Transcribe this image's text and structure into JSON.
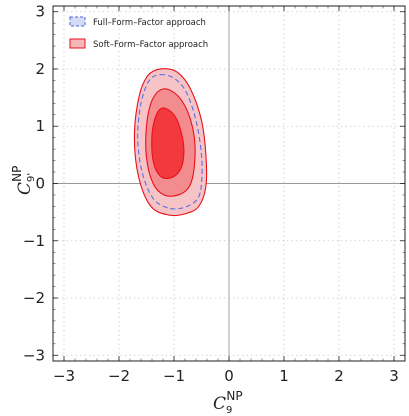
{
  "chart_data": {
    "type": "contour",
    "xlabel": {
      "base": "C",
      "sub": "9",
      "sup": "NP"
    },
    "ylabel": {
      "base": "C",
      "sub": "9'",
      "sup": "NP"
    },
    "xlim": [
      -3.2,
      3.2
    ],
    "ylim": [
      -3.1,
      3.1
    ],
    "xticks": [
      -3,
      -2,
      -1,
      0,
      1,
      2,
      3
    ],
    "yticks": [
      -3,
      -2,
      -1,
      0,
      1,
      2,
      3
    ],
    "xtick_labels": [
      "−3",
      "−2",
      "−1",
      "0",
      "1",
      "2",
      "3"
    ],
    "ytick_labels": [
      "−3",
      "−2",
      "−1",
      "0",
      "1",
      "2",
      "3"
    ],
    "grid": "dotted",
    "legend": {
      "position": "top-left",
      "entries": [
        {
          "label": "Full–Form–Factor approach",
          "style": "dashed-blue"
        },
        {
          "label": "Soft–Form–Factor approach",
          "style": "solid-red"
        }
      ]
    },
    "series": [
      {
        "name": "Full–Form–Factor approach",
        "kind": "dashed-outline",
        "color": "#5a6ee6",
        "contours": [
          {
            "sigma": 3,
            "points": [
              [
                -1.25,
                1.9
              ],
              [
                -1.0,
                1.84
              ],
              [
                -0.78,
                1.6
              ],
              [
                -0.6,
                1.1
              ],
              [
                -0.5,
                0.5
              ],
              [
                -0.5,
                0.0
              ],
              [
                -0.58,
                -0.28
              ],
              [
                -0.82,
                -0.42
              ],
              [
                -1.1,
                -0.43
              ],
              [
                -1.38,
                -0.26
              ],
              [
                -1.58,
                0.2
              ],
              [
                -1.66,
                0.8
              ],
              [
                -1.6,
                1.4
              ],
              [
                -1.45,
                1.8
              ]
            ]
          }
        ]
      },
      {
        "name": "Soft–Form–Factor approach",
        "kind": "filled",
        "color": "#e8101a",
        "contours": [
          {
            "sigma": 3,
            "fill": "#f6c4c6",
            "points": [
              [
                -1.25,
                2.0
              ],
              [
                -0.95,
                1.95
              ],
              [
                -0.7,
                1.65
              ],
              [
                -0.5,
                1.1
              ],
              [
                -0.42,
                0.5
              ],
              [
                -0.42,
                -0.05
              ],
              [
                -0.55,
                -0.4
              ],
              [
                -0.8,
                -0.53
              ],
              [
                -1.1,
                -0.55
              ],
              [
                -1.42,
                -0.4
              ],
              [
                -1.64,
                0.1
              ],
              [
                -1.72,
                0.8
              ],
              [
                -1.64,
                1.5
              ],
              [
                -1.48,
                1.88
              ]
            ]
          },
          {
            "sigma": 2,
            "fill": "#f28c8f",
            "points": [
              [
                -1.2,
                1.65
              ],
              [
                -0.95,
                1.55
              ],
              [
                -0.75,
                1.25
              ],
              [
                -0.63,
                0.8
              ],
              [
                -0.63,
                0.3
              ],
              [
                -0.72,
                -0.05
              ],
              [
                -0.92,
                -0.2
              ],
              [
                -1.18,
                -0.2
              ],
              [
                -1.38,
                0.0
              ],
              [
                -1.5,
                0.45
              ],
              [
                -1.5,
                1.0
              ],
              [
                -1.4,
                1.45
              ]
            ]
          },
          {
            "sigma": 1,
            "fill": "#f23a3e",
            "points": [
              [
                -1.2,
                1.32
              ],
              [
                -1.0,
                1.2
              ],
              [
                -0.87,
                0.9
              ],
              [
                -0.82,
                0.55
              ],
              [
                -0.88,
                0.25
              ],
              [
                -1.05,
                0.1
              ],
              [
                -1.25,
                0.13
              ],
              [
                -1.38,
                0.4
              ],
              [
                -1.4,
                0.85
              ],
              [
                -1.32,
                1.2
              ]
            ]
          }
        ]
      }
    ]
  }
}
